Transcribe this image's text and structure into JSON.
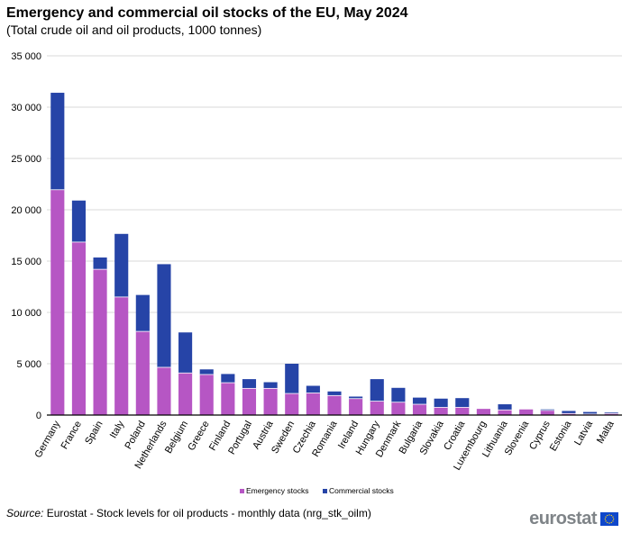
{
  "header": {
    "title": "Emergency and commercial oil stocks of the EU, May 2024",
    "subtitle": "(Total crude oil and oil products, 1000 tonnes)"
  },
  "footer": {
    "source_label": "Source:",
    "source_text": "Eurostat - Stock levels for oil products - monthly data (nrg_stk_oilm)",
    "logo_text": "eurostat",
    "logo_icon": "eu-flag-icon"
  },
  "colors": {
    "emergency": "#b656c4",
    "commercial": "#2644a7",
    "grid": "#d9d9d9",
    "axis": "#000000",
    "flag_blue": "#0e47cb",
    "flag_star": "#ffd617"
  },
  "chart_data": {
    "type": "bar",
    "stacked": true,
    "title": "Emergency and commercial oil stocks of the EU, May 2024",
    "subtitle": "(Total crude oil and oil products, 1000 tonnes)",
    "xlabel": "",
    "ylabel": "",
    "ylim": [
      0,
      35000
    ],
    "yticks": [
      0,
      5000,
      10000,
      15000,
      20000,
      25000,
      30000,
      35000
    ],
    "ytick_labels": [
      "0",
      "5 000",
      "10 000",
      "15 000",
      "20 000",
      "25 000",
      "30 000",
      "35 000"
    ],
    "grid": true,
    "legend_position": "bottom-center",
    "categories": [
      "Germany",
      "France",
      "Spain",
      "Italy",
      "Poland",
      "Netherlands",
      "Belgium",
      "Greece",
      "Finland",
      "Portugal",
      "Austria",
      "Sweden",
      "Czechia",
      "Romania",
      "Ireland",
      "Hungary",
      "Denmark",
      "Bulgaria",
      "Slovakia",
      "Croatia",
      "Luxembourg",
      "Lithuania",
      "Slovenia",
      "Cyprus",
      "Estonia",
      "Latvia",
      "Malta"
    ],
    "series": [
      {
        "name": "Emergency stocks",
        "values": [
          21950,
          16850,
          14200,
          11500,
          8150,
          4650,
          4100,
          3950,
          3150,
          2600,
          2600,
          2100,
          2150,
          1900,
          1600,
          1350,
          1250,
          1050,
          750,
          750,
          600,
          500,
          550,
          450,
          150,
          100,
          150
        ]
      },
      {
        "name": "Commercial stocks",
        "values": [
          9450,
          4050,
          1150,
          6150,
          3550,
          10050,
          3950,
          500,
          850,
          900,
          600,
          2900,
          700,
          400,
          200,
          2150,
          1400,
          650,
          850,
          900,
          0,
          550,
          0,
          100,
          250,
          200,
          100
        ]
      }
    ]
  }
}
